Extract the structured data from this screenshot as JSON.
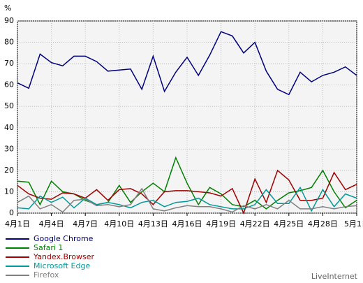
{
  "chart_data": {
    "type": "line",
    "y_label": "%",
    "source": "LiveInternet",
    "categories": [
      "4月1日",
      null,
      null,
      "4月4日",
      null,
      null,
      "4月7日",
      null,
      null,
      "4月10日",
      null,
      null,
      "4月13日",
      null,
      null,
      "4月16日",
      null,
      null,
      "4月19日",
      null,
      null,
      "4月22日",
      null,
      null,
      "4月25日",
      null,
      null,
      "4月28日",
      null,
      null,
      "5月1日"
    ],
    "ylim": [
      0,
      90
    ],
    "yticks": [
      0,
      10,
      20,
      30,
      40,
      50,
      60,
      70,
      80,
      90
    ],
    "grid": true,
    "series": [
      {
        "name": "Google Chrome",
        "color": "#00007f",
        "values": [
          61,
          58.5,
          74.5,
          70.5,
          69,
          73.5,
          73.5,
          71,
          66.5,
          67,
          67.5,
          58,
          73.5,
          57,
          66,
          73,
          64.5,
          74,
          85,
          83,
          75,
          80,
          66.5,
          58,
          55.5,
          66,
          61.5,
          64.5,
          66,
          68.5,
          64.5
        ]
      },
      {
        "name": "Safari 1",
        "color": "#008000",
        "values": [
          15,
          14.5,
          4,
          15,
          10,
          9,
          6,
          4,
          5,
          13,
          5,
          10,
          14,
          10,
          26,
          14,
          4,
          12,
          9,
          4,
          3,
          6,
          2,
          6,
          9.5,
          10.5,
          12,
          20,
          10,
          2.5,
          6
        ]
      },
      {
        "name": "Yandex.Browser",
        "color": "#a00000",
        "values": [
          13,
          9,
          7,
          6.5,
          9.5,
          9,
          7,
          11,
          6,
          11,
          11.5,
          9,
          4,
          10,
          10.5,
          10.5,
          10,
          9.5,
          8,
          11.5,
          0,
          16,
          5,
          20,
          15.5,
          6,
          6,
          7,
          19,
          11,
          13.5
        ]
      },
      {
        "name": "Microsoft Edge",
        "color": "#009999",
        "values": [
          2.5,
          2,
          8,
          5,
          7.5,
          2.5,
          7,
          4,
          5,
          4,
          2.5,
          5,
          6,
          3,
          5,
          5.5,
          7,
          4,
          3,
          2,
          2,
          4,
          11,
          4.5,
          4.5,
          12,
          1,
          11,
          3,
          9,
          7
        ]
      },
      {
        "name": "Firefox",
        "color": "#808080",
        "values": [
          5,
          8,
          2,
          4,
          0.5,
          6,
          6.5,
          3.5,
          4,
          3,
          4,
          11.5,
          2,
          1,
          2.5,
          3.5,
          3,
          3,
          2,
          0.5,
          3.5,
          2,
          4,
          2,
          6,
          2,
          2,
          3,
          2,
          3,
          3.5
        ]
      }
    ]
  }
}
